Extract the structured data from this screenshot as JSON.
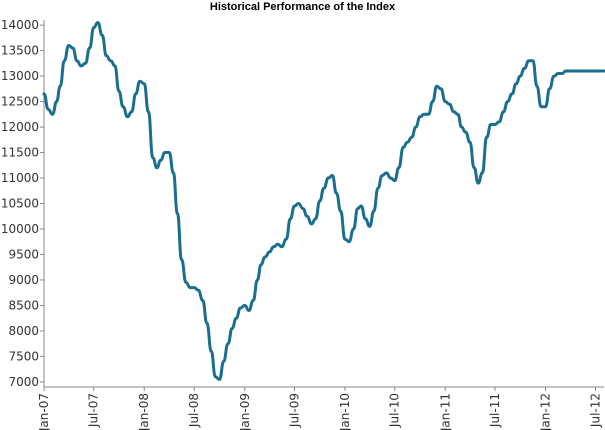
{
  "chart_data": {
    "type": "line",
    "title": "Historical Performance of the Index",
    "xlabel": "",
    "ylabel": "",
    "ylim": [
      6900,
      14100
    ],
    "yticks": [
      7000,
      7500,
      8000,
      8500,
      9000,
      9500,
      10000,
      10500,
      11000,
      11500,
      12000,
      12500,
      13000,
      13500,
      14000
    ],
    "xlim": [
      "2007-01-01",
      "2012-08-01"
    ],
    "xticks": [
      {
        "date": "2007-01-01",
        "label": "Jan-07"
      },
      {
        "date": "2007-07-01",
        "label": "Jul-07"
      },
      {
        "date": "2008-01-01",
        "label": "Jan-08"
      },
      {
        "date": "2008-07-01",
        "label": "Jul-08"
      },
      {
        "date": "2009-01-01",
        "label": "Jan-09"
      },
      {
        "date": "2009-07-01",
        "label": "Jul-09"
      },
      {
        "date": "2010-01-01",
        "label": "Jan-10"
      },
      {
        "date": "2010-07-01",
        "label": "Jul-10"
      },
      {
        "date": "2011-01-01",
        "label": "Jan-11"
      },
      {
        "date": "2011-07-01",
        "label": "Jul-11"
      },
      {
        "date": "2012-01-01",
        "label": "Jan-12"
      },
      {
        "date": "2012-07-01",
        "label": "Jul-12"
      }
    ],
    "grid": false,
    "color": "#1a6e8e",
    "series": [
      {
        "x": [
          "2007-01-01",
          "2007-01-16",
          "2007-02-01",
          "2007-02-16",
          "2007-03-01",
          "2007-03-16",
          "2007-04-01",
          "2007-04-16",
          "2007-05-01",
          "2007-05-16",
          "2007-06-01",
          "2007-06-16",
          "2007-07-01",
          "2007-07-16",
          "2007-08-01",
          "2007-08-16",
          "2007-09-01",
          "2007-09-16",
          "2007-10-01",
          "2007-10-16",
          "2007-11-01",
          "2007-11-16",
          "2007-12-01",
          "2007-12-16",
          "2008-01-01",
          "2008-01-16",
          "2008-02-01",
          "2008-02-16",
          "2008-03-01",
          "2008-03-16",
          "2008-04-01",
          "2008-04-16",
          "2008-05-01",
          "2008-05-16",
          "2008-06-01",
          "2008-06-16",
          "2008-07-01",
          "2008-07-16",
          "2008-08-01",
          "2008-08-16",
          "2008-09-01",
          "2008-09-16",
          "2008-10-01",
          "2008-10-16",
          "2008-11-01",
          "2008-11-16",
          "2008-12-01",
          "2008-12-16",
          "2009-01-01",
          "2009-01-16",
          "2009-02-01",
          "2009-02-16",
          "2009-03-01",
          "2009-03-16",
          "2009-04-01",
          "2009-04-16",
          "2009-05-01",
          "2009-05-16",
          "2009-06-01",
          "2009-06-16",
          "2009-07-01",
          "2009-07-16",
          "2009-08-01",
          "2009-08-16",
          "2009-09-01",
          "2009-09-16",
          "2009-10-01",
          "2009-10-16",
          "2009-11-01",
          "2009-11-16",
          "2009-12-01",
          "2009-12-16",
          "2010-01-01",
          "2010-01-16",
          "2010-02-01",
          "2010-02-16",
          "2010-03-01",
          "2010-03-16",
          "2010-04-01",
          "2010-04-16",
          "2010-05-01",
          "2010-05-16",
          "2010-06-01",
          "2010-06-16",
          "2010-07-01",
          "2010-07-16",
          "2010-08-01",
          "2010-08-16",
          "2010-09-01",
          "2010-09-16",
          "2010-10-01",
          "2010-10-16",
          "2010-11-01",
          "2010-11-16",
          "2010-12-01",
          "2010-12-16",
          "2011-01-01",
          "2011-01-16",
          "2011-02-01",
          "2011-02-16",
          "2011-03-01",
          "2011-03-16",
          "2011-04-01",
          "2011-04-16",
          "2011-05-01",
          "2011-05-16",
          "2011-06-01",
          "2011-06-16",
          "2011-07-01",
          "2011-07-16",
          "2011-08-01",
          "2011-08-16",
          "2011-09-01",
          "2011-09-16",
          "2011-10-01",
          "2011-10-16",
          "2011-11-01",
          "2011-11-16",
          "2011-12-01",
          "2011-12-16",
          "2012-01-01",
          "2012-01-16",
          "2012-02-01",
          "2012-02-16",
          "2012-03-01",
          "2012-03-16",
          "2012-04-01",
          "2012-04-16",
          "2012-05-01",
          "2012-05-16",
          "2012-06-01",
          "2012-06-16",
          "2012-07-01",
          "2012-07-16",
          "2012-08-01"
        ],
        "y": [
          12650,
          12350,
          12250,
          12500,
          12800,
          13300,
          13600,
          13550,
          13300,
          13200,
          13250,
          13550,
          13950,
          14050,
          13800,
          13400,
          13300,
          13200,
          12700,
          12400,
          12200,
          12300,
          12650,
          12900,
          12850,
          12300,
          11400,
          11200,
          11350,
          11500,
          11500,
          11100,
          10300,
          9400,
          8950,
          8850,
          8850,
          8800,
          8600,
          8150,
          7600,
          7100,
          7050,
          7400,
          7750,
          8050,
          8250,
          8450,
          8500,
          8400,
          8600,
          9000,
          9300,
          9450,
          9550,
          9650,
          9700,
          9650,
          9800,
          10200,
          10450,
          10500,
          10400,
          10250,
          10100,
          10200,
          10550,
          10800,
          11000,
          11050,
          10700,
          10350,
          9800,
          9750,
          10000,
          10400,
          10450,
          10200,
          10050,
          10350,
          10800,
          11050,
          11100,
          11000,
          10950,
          11200,
          11600,
          11700,
          11800,
          12000,
          12200,
          12250,
          12250,
          12500,
          12800,
          12750,
          12500,
          12450,
          12300,
          12250,
          12000,
          11900,
          11700,
          11200,
          10900,
          11100,
          11800,
          12050,
          12050,
          12100,
          12300,
          12500,
          12650,
          12850,
          13000,
          13150,
          13300,
          13300,
          12800,
          12400,
          12400,
          12750,
          13000,
          13050,
          13050,
          13100,
          13100,
          13100,
          13100,
          13100,
          13100,
          13100,
          13100,
          13100,
          13100
        ],
        "name": ""
      }
    ]
  }
}
